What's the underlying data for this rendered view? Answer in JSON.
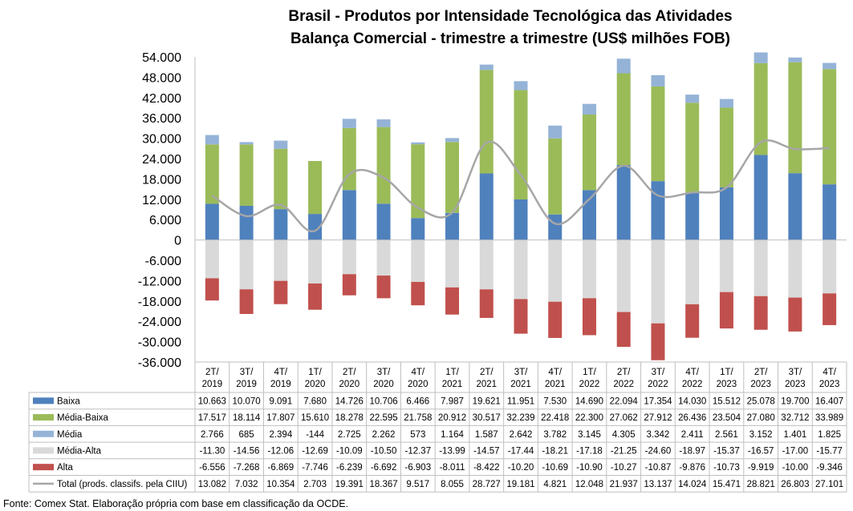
{
  "title_line1": "Brasil - Produtos por Intensidade Tecnológica das Atividades",
  "title_line2": "Balança Comercial - trimestre a trimestre (US$ milhões FOB)",
  "source": "Fonte: Comex Stat. Elaboração própria com base em classificação da OCDE.",
  "chart_data": {
    "type": "bar",
    "stacked": true,
    "title": "Brasil - Produtos por Intensidade Tecnológica das Atividades / Balança Comercial - trimestre a trimestre (US$ milhões FOB)",
    "categories": [
      "2T/2019",
      "3T/2019",
      "4T/2019",
      "1T/2020",
      "2T/2020",
      "3T/2020",
      "4T/2020",
      "1T/2021",
      "2T/2021",
      "3T/2021",
      "4T/2021",
      "1T/2022",
      "2T/2022",
      "3T/2022",
      "4T/2022",
      "1T/2023",
      "2T/2023",
      "3T/2023",
      "4T/2023"
    ],
    "category_lines": [
      [
        "2T/",
        "2019"
      ],
      [
        "3T/",
        "2019"
      ],
      [
        "4T/",
        "2019"
      ],
      [
        "1T/",
        "2020"
      ],
      [
        "2T/",
        "2020"
      ],
      [
        "3T/",
        "2020"
      ],
      [
        "4T/",
        "2020"
      ],
      [
        "1T/",
        "2021"
      ],
      [
        "2T/",
        "2021"
      ],
      [
        "3T/",
        "2021"
      ],
      [
        "4T/",
        "2021"
      ],
      [
        "1T/",
        "2022"
      ],
      [
        "2T/",
        "2022"
      ],
      [
        "3T/",
        "2022"
      ],
      [
        "4T/",
        "2022"
      ],
      [
        "1T/",
        "2023"
      ],
      [
        "2T/",
        "2023"
      ],
      [
        "3T/",
        "2023"
      ],
      [
        "4T/",
        "2023"
      ]
    ],
    "ylim": [
      -36000,
      54000
    ],
    "yticks": [
      54000,
      48000,
      42000,
      36000,
      30000,
      24000,
      18000,
      12000,
      6000,
      0,
      -6000,
      -12000,
      -18000,
      -24000,
      -30000,
      -36000
    ],
    "ytick_labels": [
      "54.000",
      "48.000",
      "42.000",
      "36.000",
      "30.000",
      "24.000",
      "18.000",
      "12.000",
      "6.000",
      "0",
      "-6.000",
      "-12.000",
      "-18.000",
      "-24.000",
      "-30.000",
      "-36.000"
    ],
    "grid": false,
    "legend": "data-table",
    "series": [
      {
        "name": "Baixa",
        "kind": "bar",
        "color": "#4f81bd",
        "values": [
          10663,
          10070,
          9091,
          7680,
          14726,
          10706,
          6466,
          7987,
          19621,
          11951,
          7530,
          14690,
          22094,
          17354,
          14030,
          15512,
          25078,
          19700,
          16407
        ],
        "labels": [
          "10.663",
          "10.070",
          "9.091",
          "7.680",
          "14.726",
          "10.706",
          "6.466",
          "7.987",
          "19.621",
          "11.951",
          "7.530",
          "14.690",
          "22.094",
          "17.354",
          "14.030",
          "15.512",
          "25.078",
          "19.700",
          "16.407"
        ]
      },
      {
        "name": "Média-Baixa",
        "kind": "bar",
        "color": "#9bbb59",
        "values": [
          17517,
          18114,
          17807,
          15610,
          18278,
          22595,
          21758,
          20912,
          30517,
          32239,
          22418,
          22300,
          27062,
          27912,
          26436,
          23504,
          27080,
          32712,
          33989
        ],
        "labels": [
          "17.517",
          "18.114",
          "17.807",
          "15.610",
          "18.278",
          "22.595",
          "21.758",
          "20.912",
          "30.517",
          "32.239",
          "22.418",
          "22.300",
          "27.062",
          "27.912",
          "26.436",
          "23.504",
          "27.080",
          "32.712",
          "33.989"
        ]
      },
      {
        "name": "Média",
        "kind": "bar",
        "color": "#95b3d7",
        "values": [
          2766,
          685,
          2394,
          -144,
          2725,
          2262,
          573,
          1164,
          1587,
          2642,
          3782,
          3145,
          4305,
          3342,
          2411,
          2561,
          3152,
          1401,
          1825
        ],
        "labels": [
          "2.766",
          "685",
          "2.394",
          "-144",
          "2.725",
          "2.262",
          "573",
          "1.164",
          "1.587",
          "2.642",
          "3.782",
          "3.145",
          "4.305",
          "3.342",
          "2.411",
          "2.561",
          "3.152",
          "1.401",
          "1.825"
        ]
      },
      {
        "name": "Média-Alta",
        "kind": "bar",
        "color": "#d9d9d9",
        "values": [
          -11300,
          -14560,
          -12060,
          -12690,
          -10090,
          -10500,
          -12370,
          -13990,
          -14570,
          -17440,
          -18210,
          -17180,
          -21250,
          -24600,
          -18970,
          -15370,
          -16570,
          -17000,
          -15770
        ],
        "labels": [
          "-11.30",
          "-14.56",
          "-12.06",
          "-12.69",
          "-10.09",
          "-10.50",
          "-12.37",
          "-13.99",
          "-14.57",
          "-17.44",
          "-18.21",
          "-17.18",
          "-21.25",
          "-24.60",
          "-18.97",
          "-15.37",
          "-16.57",
          "-17.00",
          "-15.77"
        ]
      },
      {
        "name": "Alta",
        "kind": "bar",
        "color": "#c0504d",
        "values": [
          -6556,
          -7268,
          -6869,
          -7746,
          -6239,
          -6692,
          -6903,
          -8011,
          -8422,
          -10200,
          -10690,
          -10900,
          -10270,
          -10870,
          -9876,
          -10730,
          -9919,
          -10000,
          -9346
        ],
        "labels": [
          "-6.556",
          "-7.268",
          "-6.869",
          "-7.746",
          "-6.239",
          "-6.692",
          "-6.903",
          "-8.011",
          "-8.422",
          "-10.20",
          "-10.69",
          "-10.90",
          "-10.27",
          "-10.87",
          "-9.876",
          "-10.73",
          "-9.919",
          "-10.00",
          "-9.346"
        ]
      },
      {
        "name": "Total (prods. classifs. pela CIIU)",
        "kind": "line",
        "color": "#a6a6a6",
        "values": [
          13082,
          7032,
          10354,
          2703,
          19391,
          18367,
          9517,
          8055,
          28727,
          19181,
          4821,
          12048,
          21937,
          13137,
          14024,
          15471,
          28821,
          26803,
          27101
        ],
        "labels": [
          "13.082",
          "7.032",
          "10.354",
          "2.703",
          "19.391",
          "18.367",
          "9.517",
          "8.055",
          "28.727",
          "19.181",
          "4.821",
          "12.048",
          "21.937",
          "13.137",
          "14.024",
          "15.471",
          "28.821",
          "26.803",
          "27.101"
        ]
      }
    ]
  }
}
